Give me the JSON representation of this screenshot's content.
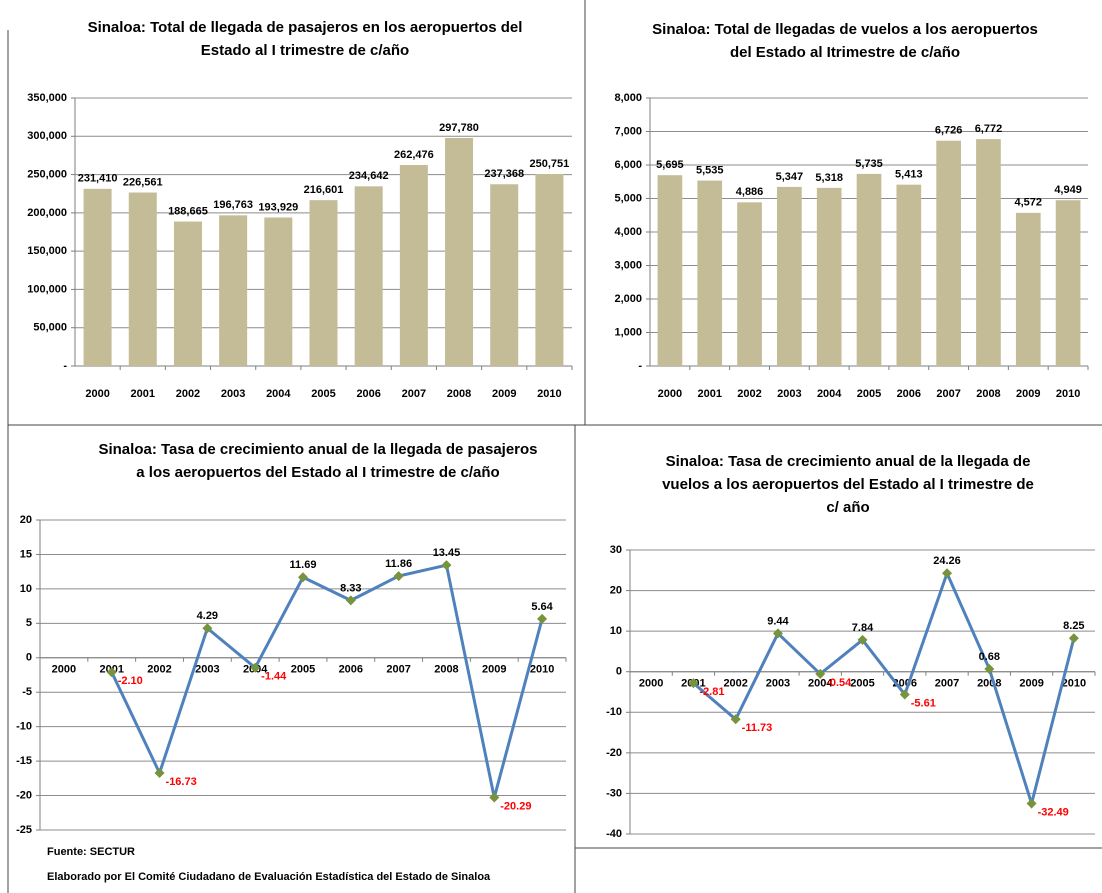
{
  "chart_data": [
    {
      "type": "bar",
      "title": [
        "Sinaloa: Total de llegada de pasajeros en los aeropuertos del",
        "Estado al I trimestre de c/año"
      ],
      "categories": [
        "2000",
        "2001",
        "2002",
        "2003",
        "2004",
        "2005",
        "2006",
        "2007",
        "2008",
        "2009",
        "2010"
      ],
      "values": [
        231410,
        226561,
        188665,
        196763,
        193929,
        216601,
        234642,
        262476,
        297780,
        237368,
        250751
      ],
      "value_labels": [
        "231,410",
        "226,561",
        "188,665",
        "196,763",
        "193,929",
        "216,601",
        "234,642",
        "262,476",
        "297,780",
        "237,368",
        "250,751"
      ],
      "color": "#c4bc96",
      "ylim": [
        0,
        350000
      ],
      "yticks": [
        {
          "value": 0,
          "label": "-"
        },
        {
          "value": 50000,
          "label": "50,000"
        },
        {
          "value": 100000,
          "label": "100,000"
        },
        {
          "value": 150000,
          "label": "150,000"
        },
        {
          "value": 200000,
          "label": "200,000"
        },
        {
          "value": 250000,
          "label": "250,000"
        },
        {
          "value": 300000,
          "label": "300,000"
        },
        {
          "value": 350000,
          "label": "350,000"
        }
      ],
      "grid": true
    },
    {
      "type": "bar",
      "title": [
        "Sinaloa: Total de llegadas de vuelos a los aeropuertos",
        "del Estado al Itrimestre  de c/año"
      ],
      "categories": [
        "2000",
        "2001",
        "2002",
        "2003",
        "2004",
        "2005",
        "2006",
        "2007",
        "2008",
        "2009",
        "2010"
      ],
      "values": [
        5695,
        5535,
        4886,
        5347,
        5318,
        5735,
        5413,
        6726,
        6772,
        4572,
        4949
      ],
      "value_labels": [
        "5,695",
        "5,535",
        "4,886",
        "5,347",
        "5,318",
        "5,735",
        "5,413",
        "6,726",
        "6,772",
        "4,572",
        "4,949"
      ],
      "color": "#c4bc96",
      "ylim": [
        0,
        8000
      ],
      "yticks": [
        {
          "value": 0,
          "label": "-"
        },
        {
          "value": 1000,
          "label": "1,000"
        },
        {
          "value": 2000,
          "label": "2,000"
        },
        {
          "value": 3000,
          "label": "3,000"
        },
        {
          "value": 4000,
          "label": "4,000"
        },
        {
          "value": 5000,
          "label": "5,000"
        },
        {
          "value": 6000,
          "label": "6,000"
        },
        {
          "value": 7000,
          "label": "7,000"
        },
        {
          "value": 8000,
          "label": "8,000"
        }
      ],
      "grid": true
    },
    {
      "type": "line",
      "title": [
        "Sinaloa: Tasa de crecimiento anual de la llegada de pasajeros",
        "a los aeropuertos del Estado al I trimestre de  c/año"
      ],
      "categories": [
        "2000",
        "2001",
        "2002",
        "2003",
        "2004",
        "2005",
        "2006",
        "2007",
        "2008",
        "2009",
        "2010"
      ],
      "values": [
        null,
        -2.1,
        -16.73,
        4.29,
        -1.44,
        11.69,
        8.33,
        11.86,
        13.45,
        -20.29,
        5.64
      ],
      "value_labels": [
        null,
        "-2.10",
        "-16.73",
        "4.29",
        "-1.44",
        "11.69",
        "8.33",
        "11.86",
        "13.45",
        "-20.29",
        "5.64"
      ],
      "color": "#4f81bd",
      "marker_color": "#77933c",
      "ylim": [
        -25,
        20
      ],
      "yticks": [
        -25,
        -20,
        -15,
        -10,
        -5,
        0,
        5,
        10,
        15,
        20
      ],
      "grid": true
    },
    {
      "type": "line",
      "title": [
        "Sinaloa: Tasa de crecimiento anual de la llegada de",
        "vuelos a los aeropuertos del Estado al I trimestre de",
        "c/ año"
      ],
      "categories": [
        "2000",
        "2001",
        "2002",
        "2003",
        "2004",
        "2005",
        "2006",
        "2007",
        "2008",
        "2009",
        "2010"
      ],
      "values": [
        null,
        -2.81,
        -11.73,
        9.44,
        -0.54,
        7.84,
        -5.61,
        24.26,
        0.68,
        -32.49,
        8.25
      ],
      "color": "#4f81bd",
      "marker_color": "#77933c",
      "ylim": [
        -40,
        30
      ],
      "yticks": [
        -40,
        -30,
        -20,
        -10,
        0,
        10,
        20,
        30
      ],
      "grid": true
    }
  ],
  "footer": {
    "source": "Fuente: SECTUR",
    "credit": "Elaborado por El Comité Ciudadano de Evaluación Estadística del Estado de Sinaloa"
  }
}
